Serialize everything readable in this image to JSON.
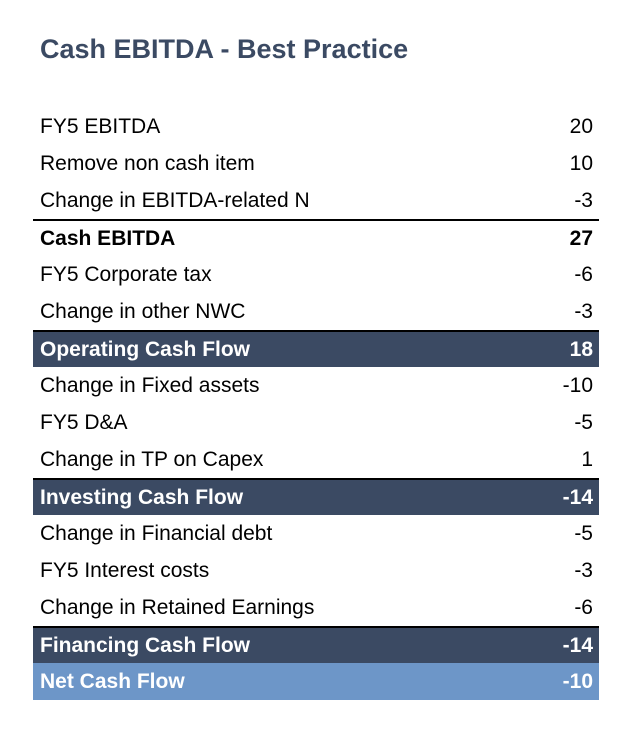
{
  "title": "Cash EBITDA - Best Practice",
  "colors": {
    "title": "#3b4a63",
    "subtotal_band": "#3b4a63",
    "net_band": "#6d96c8"
  },
  "rows": [
    {
      "label": "FY5 EBITDA",
      "value": "20"
    },
    {
      "label": "Remove non cash item",
      "value": "10"
    },
    {
      "label": "Change in EBITDA-related N",
      "value": "-3"
    },
    {
      "label": "Cash EBITDA",
      "value": "27"
    },
    {
      "label": "FY5 Corporate tax",
      "value": "-6"
    },
    {
      "label": "Change in other NWC",
      "value": "-3"
    },
    {
      "label": "Operating Cash Flow",
      "value": "18"
    },
    {
      "label": "Change in Fixed assets",
      "value": "-10"
    },
    {
      "label": "FY5 D&A",
      "value": "-5"
    },
    {
      "label": "Change in TP on Capex",
      "value": "1"
    },
    {
      "label": "Investing Cash Flow",
      "value": "-14"
    },
    {
      "label": "Change in Financial debt",
      "value": "-5"
    },
    {
      "label": "FY5 Interest costs",
      "value": "-3"
    },
    {
      "label": "Change in Retained Earnings",
      "value": "-6"
    },
    {
      "label": "Financing Cash Flow",
      "value": "-14"
    },
    {
      "label": "Net Cash Flow",
      "value": "-10"
    }
  ]
}
